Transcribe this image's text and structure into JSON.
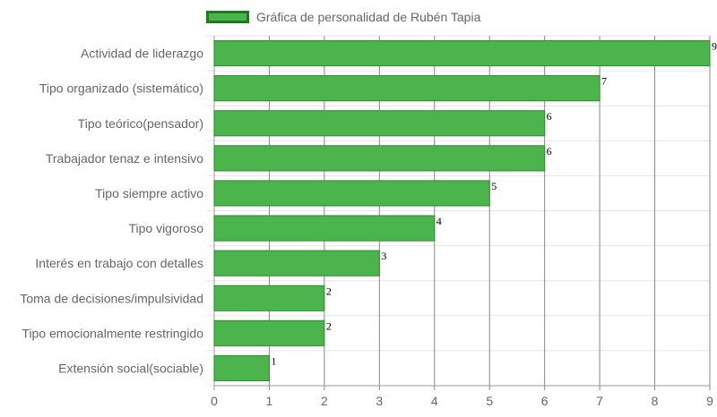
{
  "chart_data": {
    "type": "bar",
    "orientation": "horizontal",
    "categories": [
      "Actividad de liderazgo",
      "Tipo organizado (sistemático)",
      "Tipo teórico(pensador)",
      "Trabajador tenaz e intensivo",
      "Tipo siempre activo",
      "Tipo vigoroso",
      "Interés en trabajo con detalles",
      "Toma de decisiones/impulsividad",
      "Tipo emocionalmente restringido",
      "Extensión social(sociable)"
    ],
    "series": [
      {
        "name": "Gráfica de personalidad de Rubén Tapia",
        "values": [
          9,
          7,
          6,
          6,
          5,
          4,
          3,
          2,
          2,
          1
        ],
        "color": "#4cb44c",
        "border_color": "#1f7a1f"
      }
    ],
    "xlim": [
      0,
      9
    ],
    "xticks": [
      0,
      1,
      2,
      3,
      4,
      5,
      6,
      7,
      8,
      9
    ],
    "grid": true,
    "legend_position": "top",
    "data_labels": true
  }
}
